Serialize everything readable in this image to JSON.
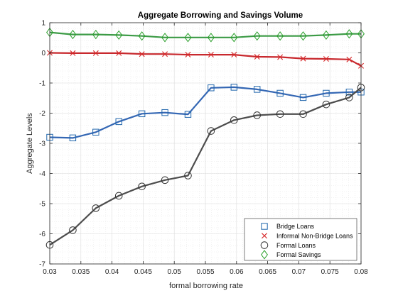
{
  "chart_data": {
    "type": "line",
    "title": "Aggregate Borrowing and Savings Volume",
    "xlabel": "formal borrowing rate",
    "ylabel": "Aggregate Levels",
    "xlim": [
      0.03,
      0.08
    ],
    "ylim": [
      -7,
      1
    ],
    "xticks": [
      0.03,
      0.035,
      0.04,
      0.045,
      0.05,
      0.055,
      0.06,
      0.065,
      0.07,
      0.075,
      0.08
    ],
    "xtick_labels": [
      "0.03",
      "0.035",
      "0.04",
      "0.045",
      "0.05",
      "0.055",
      "0.06",
      "0.065",
      "0.07",
      "0.075",
      "0.08"
    ],
    "yticks": [
      -7,
      -6,
      -5,
      -4,
      -3,
      -2,
      -1,
      0,
      1
    ],
    "ytick_labels": [
      "-7",
      "-6",
      "-5",
      "-4",
      "-3",
      "-2",
      "-1",
      "0",
      "1"
    ],
    "grid": true,
    "minor_grid": true,
    "legend_position": "bottom-right",
    "x": [
      0.03,
      0.0337,
      0.0374,
      0.0411,
      0.0448,
      0.0485,
      0.0522,
      0.0559,
      0.0596,
      0.0633,
      0.067,
      0.0707,
      0.0744,
      0.0781,
      0.08
    ],
    "series": [
      {
        "name": "Bridge Loans",
        "marker": "square",
        "color": "#2166ac",
        "line_color": "#3467b4",
        "values": [
          -2.8,
          -2.82,
          -2.63,
          -2.28,
          -2.02,
          -1.98,
          -2.04,
          -1.16,
          -1.14,
          -1.21,
          -1.34,
          -1.48,
          -1.34,
          -1.3,
          -1.3
        ]
      },
      {
        "name": "Informal Non-Bridge Loans",
        "marker": "x",
        "color": "#d62728",
        "line_color": "#c8282d",
        "values": [
          0.0,
          -0.01,
          -0.01,
          -0.01,
          -0.04,
          -0.04,
          -0.06,
          -0.06,
          -0.06,
          -0.13,
          -0.14,
          -0.19,
          -0.2,
          -0.22,
          -0.43
        ]
      },
      {
        "name": "Formal Loans",
        "marker": "circle",
        "color": "#333333",
        "line_color": "#4d4d4d",
        "values": [
          -6.37,
          -5.88,
          -5.15,
          -4.74,
          -4.43,
          -4.22,
          -4.07,
          -2.59,
          -2.23,
          -2.07,
          -2.03,
          -2.03,
          -1.71,
          -1.48,
          -1.15
        ]
      },
      {
        "name": "Formal Savings",
        "marker": "diamond",
        "color": "#2ca02c",
        "line_color": "#3c9b46",
        "values": [
          0.68,
          0.61,
          0.61,
          0.59,
          0.56,
          0.51,
          0.51,
          0.51,
          0.51,
          0.56,
          0.56,
          0.56,
          0.59,
          0.63,
          0.63
        ]
      }
    ]
  }
}
